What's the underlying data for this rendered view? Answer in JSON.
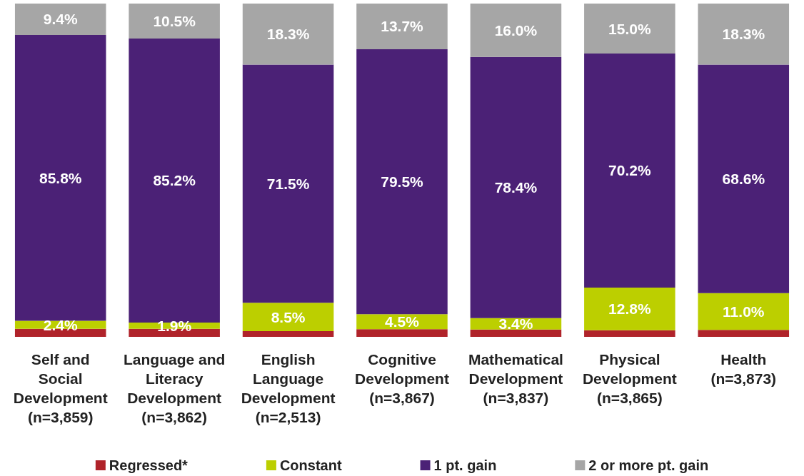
{
  "chart_data": {
    "type": "bar",
    "stacked": true,
    "ylim": [
      0,
      100
    ],
    "tick_labels": "x",
    "legend": "bottom",
    "categories": [
      "Self and\nSocial\nDevelopment\n(n=3,859)",
      "Language and\nLiteracy\nDevelopment\n(n=3,862)",
      "English\nLanguage\nDevelopment\n(n=2,513)",
      "Cognitive\nDevelopment\n(n=3,867)",
      "Mathematical\nDevelopment\n(n=3,837)",
      "Physical\nDevelopment\n(n=3,865)",
      "Health\n(n=3,873)"
    ],
    "series": [
      {
        "name": "Regressed*",
        "color": "#b0232a",
        "values": [
          2.4,
          2.4,
          1.7,
          2.3,
          2.2,
          2.0,
          2.1
        ],
        "value_labels": [
          null,
          null,
          null,
          null,
          null,
          null,
          null
        ]
      },
      {
        "name": "Constant",
        "color": "#bccf00",
        "values": [
          2.4,
          1.9,
          8.5,
          4.5,
          3.4,
          12.8,
          11.0
        ],
        "value_labels": [
          "2.4%",
          "1.9%",
          "8.5%",
          "4.5%",
          "3.4%",
          "12.8%",
          "11.0%"
        ]
      },
      {
        "name": "1 pt. gain",
        "color": "#4b2176",
        "values": [
          85.8,
          85.2,
          71.5,
          79.5,
          78.4,
          70.2,
          68.6
        ],
        "value_labels": [
          "85.8%",
          "85.2%",
          "71.5%",
          "79.5%",
          "78.4%",
          "70.2%",
          "68.6%"
        ]
      },
      {
        "name": "2 or more pt. gain",
        "color": "#a6a6a6",
        "values": [
          9.4,
          10.5,
          18.3,
          13.7,
          16.0,
          15.0,
          18.3
        ],
        "value_labels": [
          "9.4%",
          "10.5%",
          "18.3%",
          "13.7%",
          "16.0%",
          "15.0%",
          "18.3%"
        ]
      }
    ]
  }
}
